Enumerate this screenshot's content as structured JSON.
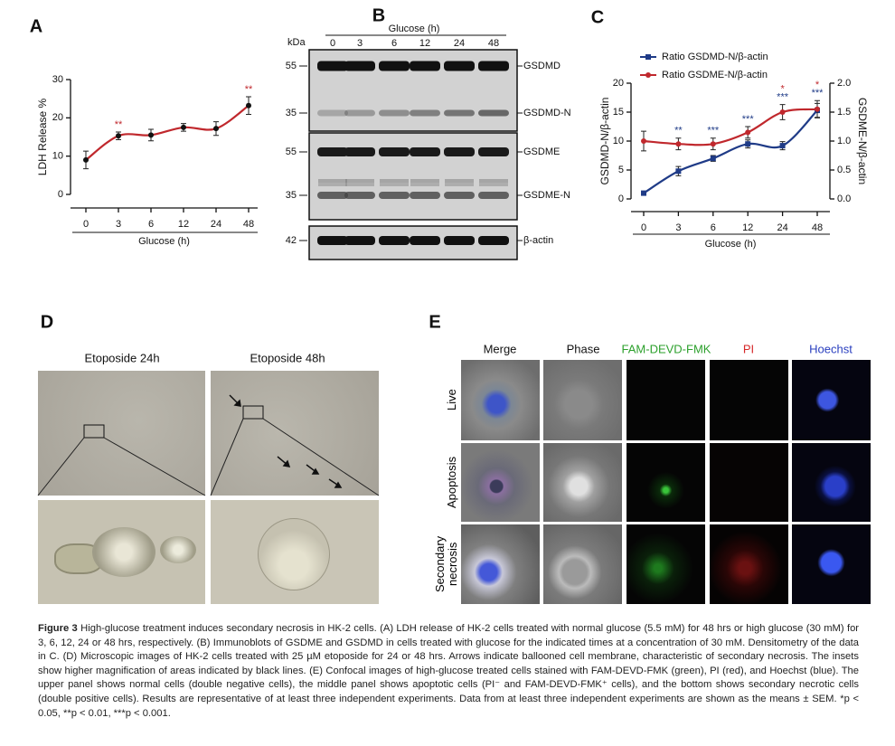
{
  "chart_data": [
    {
      "type": "line",
      "panel_label": "A",
      "y_label": "LDH Release %",
      "x_label": "Glucose (h)",
      "categories": [
        "0",
        "3",
        "6",
        "12",
        "24",
        "48"
      ],
      "ylim": [
        0,
        30
      ],
      "yticks": [
        0,
        10,
        20,
        30
      ],
      "grid": false,
      "series": [
        {
          "color": "#c0282d",
          "marker_color": "#111111",
          "marker": "circle",
          "values": [
            9,
            15.3,
            15.5,
            17.5,
            17.2,
            23.2
          ],
          "errors": [
            2.3,
            1,
            1.5,
            1,
            1.8,
            2.3
          ],
          "significance": [
            null,
            "**",
            null,
            null,
            null,
            "**"
          ],
          "significance_color": "#c0282d"
        }
      ]
    },
    {
      "type": "line",
      "panel_label": "C",
      "y_label": "GSDMD-N/β-actin",
      "y2_label": "GSDME-N/β-actin",
      "x_label": "Glucose (h)",
      "categories": [
        "0",
        "3",
        "6",
        "12",
        "24",
        "48"
      ],
      "ylim": [
        0,
        20
      ],
      "yticks": [
        0,
        5,
        10,
        15,
        20
      ],
      "y2lim": [
        0,
        2
      ],
      "y2ticks": [
        {
          "value": 0,
          "label": "0.0"
        },
        {
          "value": 0.5,
          "label": "0.5"
        },
        {
          "value": 1,
          "label": "1.0"
        },
        {
          "value": 1.5,
          "label": "1.5"
        },
        {
          "value": 2,
          "label": "2.0"
        }
      ],
      "grid": false,
      "legend": "top-left",
      "series": [
        {
          "name": "Ratio GSDMD-N/β-actin",
          "color": "#1f3b87",
          "marker_color": "#1f3b87",
          "marker": "square",
          "values": [
            1,
            4.8,
            7,
            9.5,
            9.2,
            15.3
          ],
          "errors": [
            0.2,
            0.8,
            0.5,
            0.7,
            0.7,
            1.2
          ],
          "significance": [
            null,
            "**",
            "***",
            "***",
            "***",
            "***"
          ],
          "significance_color": "#1f3b87"
        },
        {
          "name": "Ratio GSDME-N/β-actin",
          "color": "#c0282d",
          "marker_color": "#c0282d",
          "marker": "circle",
          "axis": "y2",
          "values": [
            1.0,
            0.95,
            0.95,
            1.15,
            1.5,
            1.55
          ],
          "errors": [
            0.17,
            0.1,
            0.1,
            0.1,
            0.13,
            0.15
          ],
          "significance": [
            null,
            null,
            null,
            null,
            "*",
            "*"
          ],
          "significance_color": "#c0282d"
        }
      ]
    }
  ],
  "blot": {
    "panel_label": "B",
    "header": "Glucose (h)",
    "unit": "kDa",
    "lanes": [
      "0",
      "3",
      "6",
      "12",
      "24",
      "48"
    ],
    "markers": [
      "55",
      "35",
      "55",
      "35",
      "42"
    ],
    "bands": [
      "GSDMD",
      "GSDMD-N",
      "GSDME",
      "GSDME-N",
      "β-actin"
    ]
  },
  "microscopy": {
    "panel_label": "D",
    "columns": [
      "Etoposide 24h",
      "Etoposide 48h"
    ]
  },
  "confocal": {
    "panel_label": "E",
    "columns": [
      "Merge",
      "Phase",
      "FAM-DEVD-FMK",
      "PI",
      "Hoechst"
    ],
    "rows": [
      "Live",
      "Apoptosis",
      "Secondary necrosis"
    ]
  },
  "caption": {
    "label": "Figure 3",
    "text": "High-glucose treatment induces secondary necrosis in HK-2 cells. (A) LDH release of HK-2 cells treated with normal glucose (5.5 mM) for 48 hrs or high glucose (30 mM) for 3, 6, 12, 24 or 48 hrs, respectively. (B) Immunoblots of GSDME and GSDMD in cells treated with glucose for the indicated times at a concentration of 30 mM. Densitometry of the data in C. (D) Microscopic images of HK-2 cells treated with 25 µM etoposide for 24 or 48 hrs. Arrows indicate ballooned cell membrane, characteristic of secondary necrosis. The insets show higher magnification of areas indicated by black lines. (E) Confocal images of high-glucose treated cells stained with FAM-DEVD-FMK (green), PI (red), and Hoechst (blue). The upper panel shows normal cells (double negative cells), the middle panel shows apoptotic cells (PI⁻ and FAM-DEVD-FMK⁺ cells), and the bottom shows secondary necrotic cells (double positive cells). Results are representative of at least three independent experiments. Data from at least three independent experiments are shown as the means ± SEM. *p < 0.05, **p < 0.01, ***p < 0.001."
  }
}
